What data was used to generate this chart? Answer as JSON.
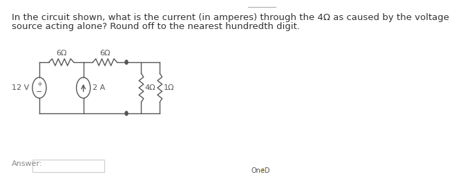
{
  "title_line1": "In the circuit shown, what is the current (in amperes) through the 4Ω as caused by the voltage",
  "title_line2": "source acting alone? Round off to the nearest hundredth digit.",
  "background_color": "#ffffff",
  "text_color": "#333333",
  "circuit_color": "#555555",
  "answer_label": "Answer:",
  "onedrive_label": "OneD",
  "r1_label": "6Ω",
  "r2_label": "6Ω",
  "r3_label": "4Ω",
  "r4_label": "1Ω",
  "vs_label": "12 V",
  "cs_label": "2 A",
  "font_size_body": 9.5,
  "font_size_circuit": 8,
  "font_size_answer": 8
}
